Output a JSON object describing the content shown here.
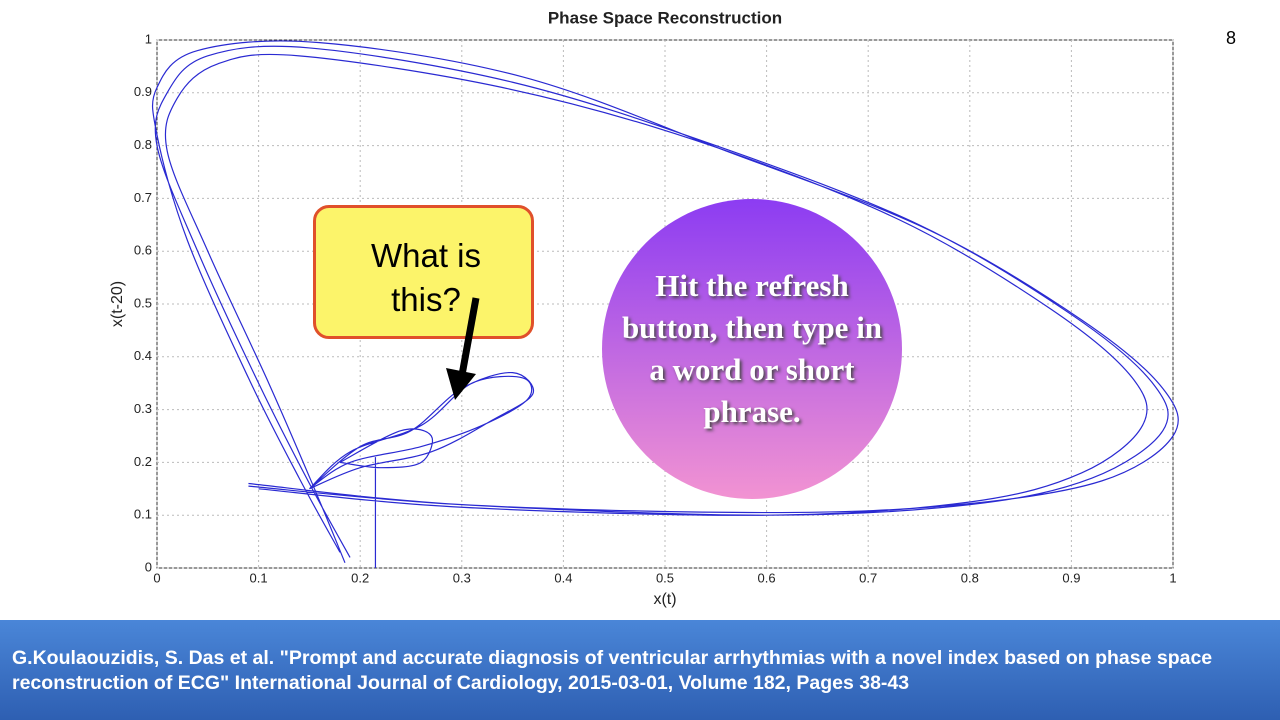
{
  "page_number": "8",
  "chart_data": {
    "type": "line",
    "title": "Phase Space Reconstruction",
    "x_label": "x(t)",
    "y_label": "x(t-20)",
    "xlim": [
      0,
      1
    ],
    "ylim": [
      0,
      1
    ],
    "xticks": [
      0,
      0.1,
      0.2,
      0.3,
      0.4,
      0.5,
      0.6,
      0.7,
      0.8,
      0.9,
      1
    ],
    "yticks": [
      0,
      0.1,
      0.2,
      0.3,
      0.4,
      0.5,
      0.6,
      0.7,
      0.8,
      0.9,
      1
    ],
    "grid": true,
    "series": [
      {
        "color": "#2a2ad2",
        "x": [
          0.09,
          0.3,
          0.6,
          0.8,
          0.92,
          0.99,
          0.98,
          0.9,
          0.75,
          0.55,
          0.35,
          0.15,
          0.05,
          0.01,
          0.0,
          0.04,
          0.1,
          0.15,
          0.19,
          null,
          0.1,
          0.3,
          0.6,
          0.8,
          0.91,
          0.97,
          0.96,
          0.88,
          0.73,
          0.53,
          0.34,
          0.14,
          0.06,
          0.02,
          0.01,
          0.05,
          0.11,
          0.155,
          0.185,
          null,
          0.09,
          0.3,
          0.6,
          0.79,
          0.93,
          1.0,
          0.99,
          0.91,
          0.76,
          0.56,
          0.36,
          0.16,
          0.04,
          0.0,
          0.0,
          0.03,
          0.09,
          0.14,
          0.18,
          null,
          0.15,
          0.2,
          0.25,
          0.3,
          0.35,
          0.37,
          0.33,
          0.27,
          0.2,
          0.15,
          null,
          0.15,
          0.19,
          0.26,
          0.31,
          0.36,
          0.365,
          0.32,
          0.26,
          0.19,
          0.15,
          null,
          0.18,
          0.24,
          0.27,
          0.26,
          0.22,
          0.18,
          null,
          0.215,
          0.215
        ],
        "y": [
          0.155,
          0.12,
          0.1,
          0.12,
          0.17,
          0.26,
          0.35,
          0.48,
          0.65,
          0.8,
          0.92,
          0.985,
          0.97,
          0.9,
          0.8,
          0.6,
          0.35,
          0.16,
          0.02,
          null,
          0.15,
          0.115,
          0.1,
          0.125,
          0.18,
          0.27,
          0.36,
          0.49,
          0.66,
          0.81,
          0.91,
          0.97,
          0.955,
          0.89,
          0.79,
          0.6,
          0.35,
          0.15,
          0.01,
          null,
          0.16,
          0.12,
          0.105,
          0.12,
          0.165,
          0.25,
          0.34,
          0.47,
          0.64,
          0.79,
          0.93,
          0.995,
          0.98,
          0.91,
          0.82,
          0.62,
          0.36,
          0.17,
          0.03,
          null,
          0.15,
          0.23,
          0.26,
          0.34,
          0.37,
          0.33,
          0.28,
          0.22,
          0.19,
          0.15,
          null,
          0.15,
          0.22,
          0.27,
          0.35,
          0.36,
          0.32,
          0.27,
          0.23,
          0.2,
          0.15,
          null,
          0.2,
          0.26,
          0.25,
          0.2,
          0.19,
          0.2,
          null,
          0.0,
          0.21
        ]
      }
    ]
  },
  "callout": {
    "text": "What is this?"
  },
  "bubble": {
    "text": "Hit the refresh button, then type in a word or short phrase."
  },
  "citation": "G.Koulaouzidis, S. Das et al.  \"Prompt and accurate diagnosis of ventricular arrhythmias with a novel index based on phase space reconstruction of ECG\" International Journal of Cardiology, 2015-03-01, Volume 182, Pages 38-43"
}
